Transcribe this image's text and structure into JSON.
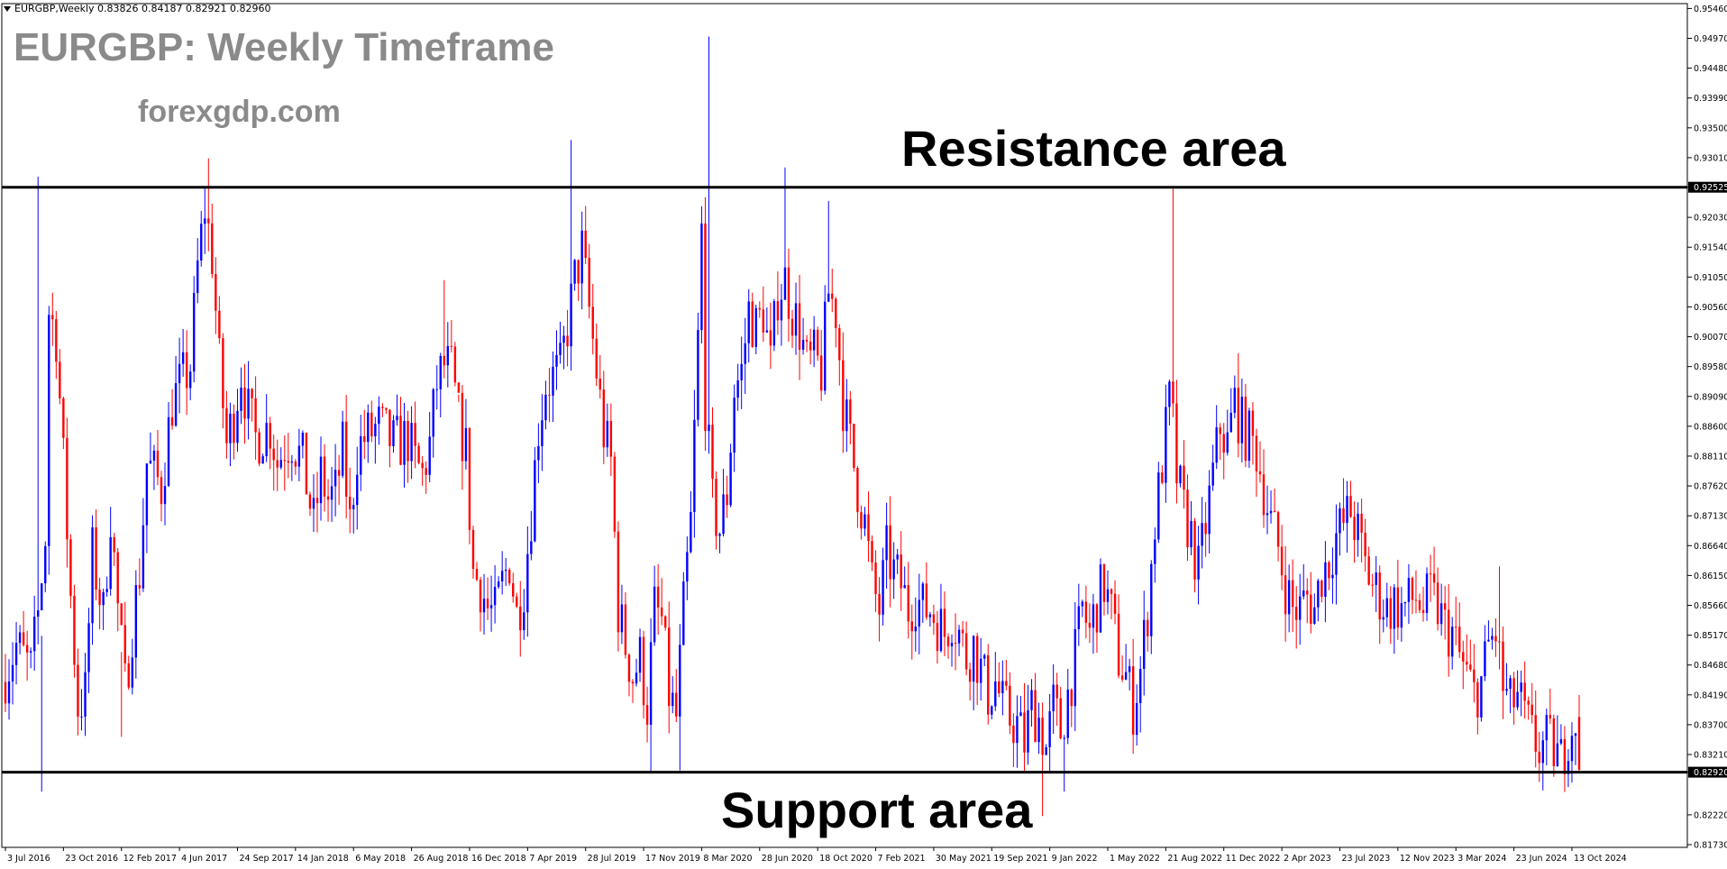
{
  "header": {
    "symbol_line": "EURGBP,Weekly  0.83826 0.84187 0.82921 0.82960"
  },
  "title": "EURGBP: Weekly Timeframe",
  "site": "forexgdp.com",
  "annotations": {
    "resistance": "Resistance area",
    "support": "Support area"
  },
  "colors": {
    "bull": "#0000ff",
    "bear": "#ff0000",
    "line": "#000000",
    "axis": "#000000",
    "label_bg": "#000000"
  },
  "chart_data": {
    "type": "candlestick",
    "title": "EURGBP: Weekly Timeframe",
    "ylim": [
      0.8173,
      0.9554
    ],
    "y_ticks": [
      "0.95460",
      "0.94970",
      "0.94480",
      "0.93990",
      "0.93500",
      "0.93010",
      "0.92525",
      "0.92030",
      "0.91540",
      "0.91050",
      "0.90560",
      "0.90070",
      "0.89580",
      "0.89090",
      "0.88600",
      "0.88110",
      "0.87620",
      "0.87130",
      "0.86640",
      "0.86150",
      "0.85660",
      "0.85170",
      "0.84680",
      "0.84190",
      "0.83700",
      "0.83210",
      "0.82920",
      "0.82220",
      "0.81730"
    ],
    "x_ticks": [
      {
        "label": "3 Jul 2016",
        "week": 0
      },
      {
        "label": "23 Oct 2016",
        "week": 16
      },
      {
        "label": "12 Feb 2017",
        "week": 32
      },
      {
        "label": "4 Jun 2017",
        "week": 48
      },
      {
        "label": "24 Sep 2017",
        "week": 64
      },
      {
        "label": "14 Jan 2018",
        "week": 80
      },
      {
        "label": "6 May 2018",
        "week": 96
      },
      {
        "label": "26 Aug 2018",
        "week": 112
      },
      {
        "label": "16 Dec 2018",
        "week": 128
      },
      {
        "label": "7 Apr 2019",
        "week": 144
      },
      {
        "label": "28 Jul 2019",
        "week": 160
      },
      {
        "label": "17 Nov 2019",
        "week": 176
      },
      {
        "label": "8 Mar 2020",
        "week": 192
      },
      {
        "label": "28 Jun 2020",
        "week": 208
      },
      {
        "label": "18 Oct 2020",
        "week": 224
      },
      {
        "label": "7 Feb 2021",
        "week": 240
      },
      {
        "label": "30 May 2021",
        "week": 256
      },
      {
        "label": "19 Sep 2021",
        "week": 272
      },
      {
        "label": "9 Jan 2022",
        "week": 288
      },
      {
        "label": "1 May 2022",
        "week": 304
      },
      {
        "label": "21 Aug 2022",
        "week": 320
      },
      {
        "label": "11 Dec 2022",
        "week": 336
      },
      {
        "label": "2 Apr 2023",
        "week": 352
      },
      {
        "label": "23 Jul 2023",
        "week": 368
      },
      {
        "label": "12 Nov 2023",
        "week": 384
      },
      {
        "label": "3 Mar 2024",
        "week": 400
      },
      {
        "label": "23 Jun 2024",
        "week": 416
      },
      {
        "label": "13 Oct 2024",
        "week": 432
      }
    ],
    "weeks_total": 436,
    "resistance": 0.92525,
    "support": 0.8292,
    "highlight_labels": [
      "0.92525",
      "0.82920"
    ],
    "last_ohlc": {
      "open": 0.83826,
      "high": 0.84187,
      "low": 0.82921,
      "close": 0.8296
    },
    "path_anchors": [
      [
        0,
        0.844
      ],
      [
        4,
        0.85
      ],
      [
        8,
        0.846
      ],
      [
        10,
        0.855
      ],
      [
        12,
        0.868
      ],
      [
        13,
        0.905
      ],
      [
        15,
        0.901
      ],
      [
        17,
        0.88
      ],
      [
        19,
        0.858
      ],
      [
        21,
        0.84
      ],
      [
        23,
        0.842
      ],
      [
        25,
        0.865
      ],
      [
        28,
        0.855
      ],
      [
        30,
        0.872
      ],
      [
        32,
        0.856
      ],
      [
        34,
        0.843
      ],
      [
        36,
        0.853
      ],
      [
        38,
        0.862
      ],
      [
        40,
        0.88
      ],
      [
        44,
        0.876
      ],
      [
        47,
        0.89
      ],
      [
        52,
        0.896
      ],
      [
        54,
        0.912
      ],
      [
        56,
        0.922
      ],
      [
        58,
        0.914
      ],
      [
        60,
        0.896
      ],
      [
        62,
        0.883
      ],
      [
        64,
        0.888
      ],
      [
        66,
        0.895
      ],
      [
        68,
        0.888
      ],
      [
        70,
        0.884
      ],
      [
        74,
        0.886
      ],
      [
        76,
        0.88
      ],
      [
        78,
        0.883
      ],
      [
        80,
        0.884
      ],
      [
        83,
        0.88
      ],
      [
        86,
        0.87
      ],
      [
        88,
        0.878
      ],
      [
        90,
        0.874
      ],
      [
        92,
        0.875
      ],
      [
        94,
        0.882
      ],
      [
        96,
        0.87
      ],
      [
        98,
        0.882
      ],
      [
        100,
        0.884
      ],
      [
        104,
        0.886
      ],
      [
        108,
        0.883
      ],
      [
        112,
        0.884
      ],
      [
        114,
        0.88
      ],
      [
        116,
        0.878
      ],
      [
        118,
        0.883
      ],
      [
        120,
        0.893
      ],
      [
        122,
        0.896
      ],
      [
        124,
        0.895
      ],
      [
        126,
        0.887
      ],
      [
        128,
        0.882
      ],
      [
        130,
        0.862
      ],
      [
        132,
        0.86
      ],
      [
        134,
        0.856
      ],
      [
        136,
        0.855
      ],
      [
        138,
        0.86
      ],
      [
        140,
        0.864
      ],
      [
        142,
        0.855
      ],
      [
        144,
        0.86
      ],
      [
        146,
        0.872
      ],
      [
        148,
        0.886
      ],
      [
        150,
        0.893
      ],
      [
        154,
        0.895
      ],
      [
        158,
        0.91
      ],
      [
        160,
        0.915
      ],
      [
        162,
        0.905
      ],
      [
        164,
        0.895
      ],
      [
        166,
        0.885
      ],
      [
        168,
        0.88
      ],
      [
        170,
        0.856
      ],
      [
        172,
        0.85
      ],
      [
        174,
        0.845
      ],
      [
        176,
        0.848
      ],
      [
        178,
        0.84
      ],
      [
        180,
        0.856
      ],
      [
        182,
        0.854
      ],
      [
        184,
        0.842
      ],
      [
        186,
        0.838
      ],
      [
        188,
        0.856
      ],
      [
        190,
        0.87
      ],
      [
        192,
        0.9
      ],
      [
        193,
        0.918
      ],
      [
        194,
        0.89
      ],
      [
        196,
        0.873
      ],
      [
        198,
        0.869
      ],
      [
        200,
        0.875
      ],
      [
        202,
        0.892
      ],
      [
        204,
        0.895
      ],
      [
        206,
        0.905
      ],
      [
        208,
        0.902
      ],
      [
        210,
        0.905
      ],
      [
        212,
        0.896
      ],
      [
        214,
        0.908
      ],
      [
        216,
        0.91
      ],
      [
        218,
        0.905
      ],
      [
        220,
        0.902
      ],
      [
        222,
        0.896
      ],
      [
        224,
        0.897
      ],
      [
        226,
        0.895
      ],
      [
        228,
        0.908
      ],
      [
        230,
        0.905
      ],
      [
        232,
        0.89
      ],
      [
        234,
        0.883
      ],
      [
        236,
        0.876
      ],
      [
        238,
        0.87
      ],
      [
        240,
        0.86
      ],
      [
        242,
        0.856
      ],
      [
        244,
        0.865
      ],
      [
        246,
        0.862
      ],
      [
        248,
        0.86
      ],
      [
        250,
        0.856
      ],
      [
        252,
        0.858
      ],
      [
        254,
        0.856
      ],
      [
        256,
        0.856
      ],
      [
        258,
        0.854
      ],
      [
        260,
        0.852
      ],
      [
        262,
        0.855
      ],
      [
        264,
        0.852
      ],
      [
        266,
        0.848
      ],
      [
        268,
        0.85
      ],
      [
        270,
        0.846
      ],
      [
        272,
        0.842
      ],
      [
        274,
        0.844
      ],
      [
        276,
        0.84
      ],
      [
        278,
        0.838
      ],
      [
        280,
        0.837
      ],
      [
        282,
        0.834
      ],
      [
        284,
        0.84
      ],
      [
        286,
        0.838
      ],
      [
        288,
        0.833
      ],
      [
        290,
        0.84
      ],
      [
        292,
        0.836
      ],
      [
        294,
        0.842
      ],
      [
        296,
        0.848
      ],
      [
        298,
        0.856
      ],
      [
        300,
        0.852
      ],
      [
        302,
        0.857
      ],
      [
        304,
        0.86
      ],
      [
        306,
        0.855
      ],
      [
        308,
        0.848
      ],
      [
        310,
        0.845
      ],
      [
        312,
        0.84
      ],
      [
        314,
        0.846
      ],
      [
        316,
        0.856
      ],
      [
        318,
        0.87
      ],
      [
        320,
        0.88
      ],
      [
        322,
        0.89
      ],
      [
        323,
        0.886
      ],
      [
        324,
        0.878
      ],
      [
        326,
        0.872
      ],
      [
        328,
        0.868
      ],
      [
        330,
        0.862
      ],
      [
        332,
        0.87
      ],
      [
        334,
        0.878
      ],
      [
        336,
        0.886
      ],
      [
        338,
        0.883
      ],
      [
        340,
        0.89
      ],
      [
        342,
        0.886
      ],
      [
        344,
        0.884
      ],
      [
        346,
        0.882
      ],
      [
        348,
        0.876
      ],
      [
        350,
        0.87
      ],
      [
        352,
        0.866
      ],
      [
        354,
        0.86
      ],
      [
        356,
        0.856
      ],
      [
        358,
        0.856
      ],
      [
        360,
        0.858
      ],
      [
        362,
        0.856
      ],
      [
        364,
        0.862
      ],
      [
        366,
        0.864
      ],
      [
        368,
        0.868
      ],
      [
        370,
        0.87
      ],
      [
        372,
        0.872
      ],
      [
        374,
        0.868
      ],
      [
        376,
        0.863
      ],
      [
        378,
        0.86
      ],
      [
        380,
        0.858
      ],
      [
        382,
        0.856
      ],
      [
        384,
        0.857
      ],
      [
        386,
        0.856
      ],
      [
        388,
        0.857
      ],
      [
        390,
        0.858
      ],
      [
        392,
        0.856
      ],
      [
        394,
        0.858
      ],
      [
        396,
        0.856
      ],
      [
        398,
        0.853
      ],
      [
        400,
        0.852
      ],
      [
        402,
        0.848
      ],
      [
        404,
        0.845
      ],
      [
        406,
        0.842
      ],
      [
        408,
        0.844
      ],
      [
        410,
        0.85
      ],
      [
        412,
        0.852
      ],
      [
        414,
        0.843
      ],
      [
        416,
        0.84
      ],
      [
        418,
        0.842
      ],
      [
        420,
        0.838
      ],
      [
        422,
        0.835
      ],
      [
        424,
        0.833
      ],
      [
        426,
        0.834
      ],
      [
        428,
        0.833
      ],
      [
        430,
        0.831
      ],
      [
        432,
        0.836
      ],
      [
        434,
        0.8383
      ]
    ],
    "spikes": [
      {
        "week": 9,
        "high": 0.927
      },
      {
        "week": 10,
        "high": 0.826
      },
      {
        "week": 32,
        "high": 0.835
      },
      {
        "week": 56,
        "high": 0.93
      },
      {
        "week": 121,
        "high": 0.91
      },
      {
        "week": 125,
        "high": 0.89
      },
      {
        "week": 156,
        "high": 0.933
      },
      {
        "week": 178,
        "low": 0.829
      },
      {
        "week": 186,
        "low": 0.8295
      },
      {
        "week": 194,
        "high": 0.95
      },
      {
        "week": 215,
        "high": 0.9285
      },
      {
        "week": 227,
        "high": 0.923
      },
      {
        "week": 286,
        "low": 0.822
      },
      {
        "week": 292,
        "low": 0.826
      },
      {
        "week": 322,
        "high": 0.925
      },
      {
        "week": 340,
        "high": 0.898
      },
      {
        "week": 370,
        "high": 0.877
      },
      {
        "week": 412,
        "high": 0.863
      }
    ],
    "xlabel": "",
    "ylabel": ""
  }
}
